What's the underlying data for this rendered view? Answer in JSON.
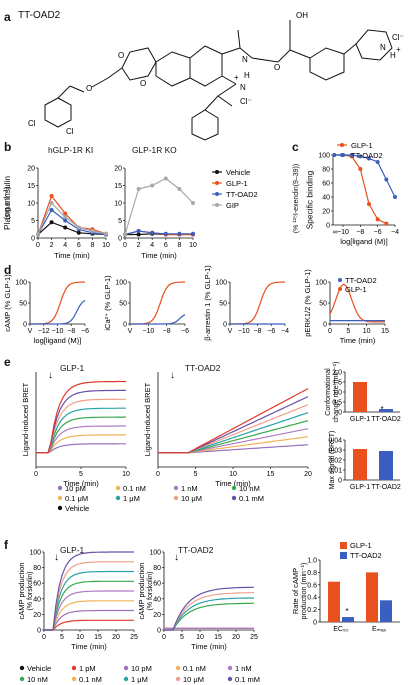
{
  "panels": {
    "a": "a",
    "b": "b",
    "c": "c",
    "d": "d",
    "e": "e",
    "f": "f"
  },
  "colors": {
    "vehicle": "#111111",
    "glp1": "#e8501e",
    "ttoad2": "#3a5fbf",
    "gip": "#a8a8a8",
    "c10pM": "#9b6fbf",
    "c1pM": "#e03a2c",
    "c01nM": "#f2b25a",
    "c1nM": "#b07ac6",
    "c10nM": "#3aa84a",
    "c100nM": "#e05555",
    "c1uM": "#2aa3a8",
    "c10uM": "#f0a08a",
    "c01mM": "#6a4fa8"
  },
  "molecule": {
    "name": "TT-OAD2",
    "atoms": [
      "O",
      "O",
      "O",
      "OH",
      "O",
      "N",
      "H",
      "Cl",
      "Cl",
      "Cl⁻",
      "Cl⁻",
      "N",
      "H",
      "+",
      "+",
      "H",
      "N"
    ],
    "charges": [
      "+",
      "+"
    ]
  },
  "panel_b": {
    "charts": [
      {
        "title": "hGLP-1R KI",
        "ylabel": "Plasma insulin",
        "yunit": "(ng ml⁻¹)",
        "xlabel": "Time (min)",
        "yticks": [
          "0",
          "5",
          "10",
          "15",
          "20"
        ],
        "xticks": [
          "0",
          "2",
          "4",
          "6",
          "8",
          "10"
        ]
      },
      {
        "title": "GLP-1R KO",
        "xlabel": "Time (min)",
        "yticks": [
          "0",
          "5",
          "10",
          "15",
          "20"
        ],
        "xticks": [
          "0",
          "2",
          "4",
          "6",
          "8",
          "10"
        ]
      }
    ],
    "legend": [
      "Vehicle",
      "GLP-1",
      "TT-OAD2",
      "GIP"
    ]
  },
  "panel_c": {
    "ylabel": "Specific binding",
    "yunit": "(% ¹²⁵I-exendin(9–39))",
    "xlabel": "log[ligand (M)]",
    "yticks": [
      "0",
      "20",
      "40",
      "60",
      "80",
      "100"
    ],
    "xticks": [
      "−10",
      "−8",
      "−6",
      "−4"
    ],
    "xbreak": "∞",
    "legend": [
      "GLP-1",
      "TT-OAD2"
    ]
  },
  "panel_d": {
    "charts": [
      {
        "ylabel": "cAMP (% GLP-1)",
        "xlabel": "log[ligand (M)]",
        "xticks": [
          "V",
          "−12",
          "−10",
          "−8",
          "−6"
        ],
        "yticks": [
          "0",
          "50",
          "100"
        ]
      },
      {
        "ylabel": "iCa²⁺ (% GLP-1)",
        "xlabel": "",
        "xticks": [
          "V",
          "−10",
          "−8",
          "−6"
        ],
        "yticks": [
          "0",
          "50",
          "100"
        ]
      },
      {
        "ylabel": "β-arrestin 1 (% GLP-1)",
        "xlabel": "",
        "xticks": [
          "V",
          "−10",
          "−8",
          "−6",
          "−4"
        ],
        "yticks": [
          "0",
          "50",
          "100"
        ]
      },
      {
        "ylabel": "pERK1/2 (% GLP-1)",
        "xlabel": "Time (min)",
        "xticks": [
          "0",
          "5",
          "10",
          "15"
        ],
        "yticks": [
          "0",
          "50",
          "100"
        ]
      }
    ],
    "legend": [
      "TT-OAD2",
      "GLP-1"
    ]
  },
  "panel_e": {
    "charts": [
      {
        "title": "GLP-1",
        "ylabel": "Ligand-induced BRET",
        "xlabel": "Time (min)",
        "xticks": [
          "0",
          "5",
          "10"
        ]
      },
      {
        "title": "TT-OAD2",
        "ylabel": "Ligand-induced BRET",
        "xlabel": "Time (min)",
        "xticks": [
          "0",
          "5",
          "10",
          "15",
          "20"
        ]
      }
    ],
    "legend": [
      "10 pM",
      "0.1 nM",
      "1 nM",
      "10 nM",
      "0.1 μM",
      "1 μM",
      "10 μM",
      "0.1 mM",
      "Vehicle"
    ],
    "bar1": {
      "ylabel": "Conformational",
      "ylabel2": "change rate (min⁻¹)",
      "yticks": [
        "0",
        "0.5",
        "1.0",
        "1.5",
        "2.0"
      ],
      "categories": [
        "GLP-1",
        "TT-OAD2"
      ],
      "values": [
        1.5,
        0.15
      ],
      "star": "*"
    },
    "bar2": {
      "ylabel": "Max signal (BRET)",
      "yticks": [
        "0",
        "0.01",
        "0.02",
        "0.03",
        "0.04"
      ],
      "categories": [
        "GLP-1",
        "TT-OAD2"
      ],
      "values": [
        0.031,
        0.029
      ]
    }
  },
  "panel_f": {
    "charts": [
      {
        "title": "GLP-1",
        "ylabel": "cAMP production",
        "yunit": "(% forskolin)",
        "xlabel": "Time (min)",
        "xticks": [
          "0",
          "5",
          "10",
          "15",
          "20",
          "25"
        ],
        "yticks": [
          "0",
          "20",
          "40",
          "60",
          "80",
          "100"
        ]
      },
      {
        "title": "TT-OAD2",
        "ylabel": "cAMP production",
        "yunit": "(% forskolin)",
        "xlabel": "Time (min)",
        "xticks": [
          "0",
          "5",
          "10",
          "15",
          "20",
          "25"
        ],
        "yticks": [
          "0",
          "20",
          "40",
          "60",
          "80",
          "100"
        ]
      }
    ],
    "bars": {
      "ylabel": "Rate of cAMP",
      "ylabel2": "production (min⁻¹)",
      "yticks": [
        "0",
        "0.2",
        "0.4",
        "0.6",
        "0.8",
        "1.0"
      ],
      "categories": [
        "EC₅₀",
        "Eₘₐₓ"
      ],
      "series": [
        {
          "name": "GLP-1",
          "values": [
            0.65,
            0.8
          ]
        },
        {
          "name": "TT-OAD2",
          "values": [
            0.08,
            0.35
          ]
        }
      ],
      "star": "*"
    },
    "legend": [
      "Vehicle",
      "1 pM",
      "10 pM",
      "0.1 nM",
      "1 nM",
      "10 nM",
      "0.1 nM",
      "1 μM",
      "10 μM",
      "0.1 mM"
    ]
  },
  "chart_data": [
    {
      "type": "line",
      "title": "hGLP-1R KI",
      "x": [
        0,
        2,
        4,
        6,
        8,
        10
      ],
      "series": [
        {
          "name": "Vehicle",
          "values": [
            1,
            4.5,
            3,
            1.5,
            1.2,
            1
          ]
        },
        {
          "name": "GLP-1",
          "values": [
            1,
            12,
            7,
            3,
            2.5,
            1.2
          ]
        },
        {
          "name": "TT-OAD2",
          "values": [
            1,
            8,
            5,
            2.5,
            1.5,
            1
          ]
        },
        {
          "name": "GIP",
          "values": [
            1,
            10,
            6,
            3,
            2,
            1.2
          ]
        }
      ]
    },
    {
      "type": "line",
      "title": "GLP-1R KO",
      "x": [
        0,
        2,
        4,
        6,
        8,
        10
      ],
      "series": [
        {
          "name": "Vehicle",
          "values": [
            1,
            1,
            1.2,
            1,
            1,
            1
          ]
        },
        {
          "name": "GLP-1",
          "values": [
            1,
            2,
            1.5,
            1,
            1,
            1
          ]
        },
        {
          "name": "TT-OAD2",
          "values": [
            1,
            2,
            1.5,
            1.2,
            1.2,
            1.2
          ]
        },
        {
          "name": "GIP",
          "values": [
            1,
            14,
            15,
            17,
            14,
            10
          ]
        }
      ]
    },
    {
      "type": "line",
      "series": [
        {
          "name": "GLP-1",
          "x": [
            -11,
            -10,
            -9,
            -8,
            -7,
            -6,
            -5
          ],
          "values": [
            100,
            100,
            98,
            80,
            30,
            8,
            2
          ]
        },
        {
          "name": "TT-OAD2",
          "x": [
            -11,
            -10,
            -9,
            -8,
            -7,
            -6,
            -5,
            -4
          ],
          "values": [
            100,
            100,
            100,
            98,
            95,
            90,
            65,
            40
          ]
        }
      ]
    },
    {
      "type": "bar",
      "title": "Conformational change rate",
      "categories": [
        "GLP-1",
        "TT-OAD2"
      ],
      "values": [
        1.5,
        0.15
      ]
    },
    {
      "type": "bar",
      "title": "Max signal (BRET)",
      "categories": [
        "GLP-1",
        "TT-OAD2"
      ],
      "values": [
        0.031,
        0.029
      ]
    },
    {
      "type": "bar",
      "categories": [
        "EC50",
        "Emax"
      ],
      "series": [
        {
          "name": "GLP-1",
          "values": [
            0.65,
            0.8
          ]
        },
        {
          "name": "TT-OAD2",
          "values": [
            0.08,
            0.35
          ]
        }
      ]
    }
  ]
}
